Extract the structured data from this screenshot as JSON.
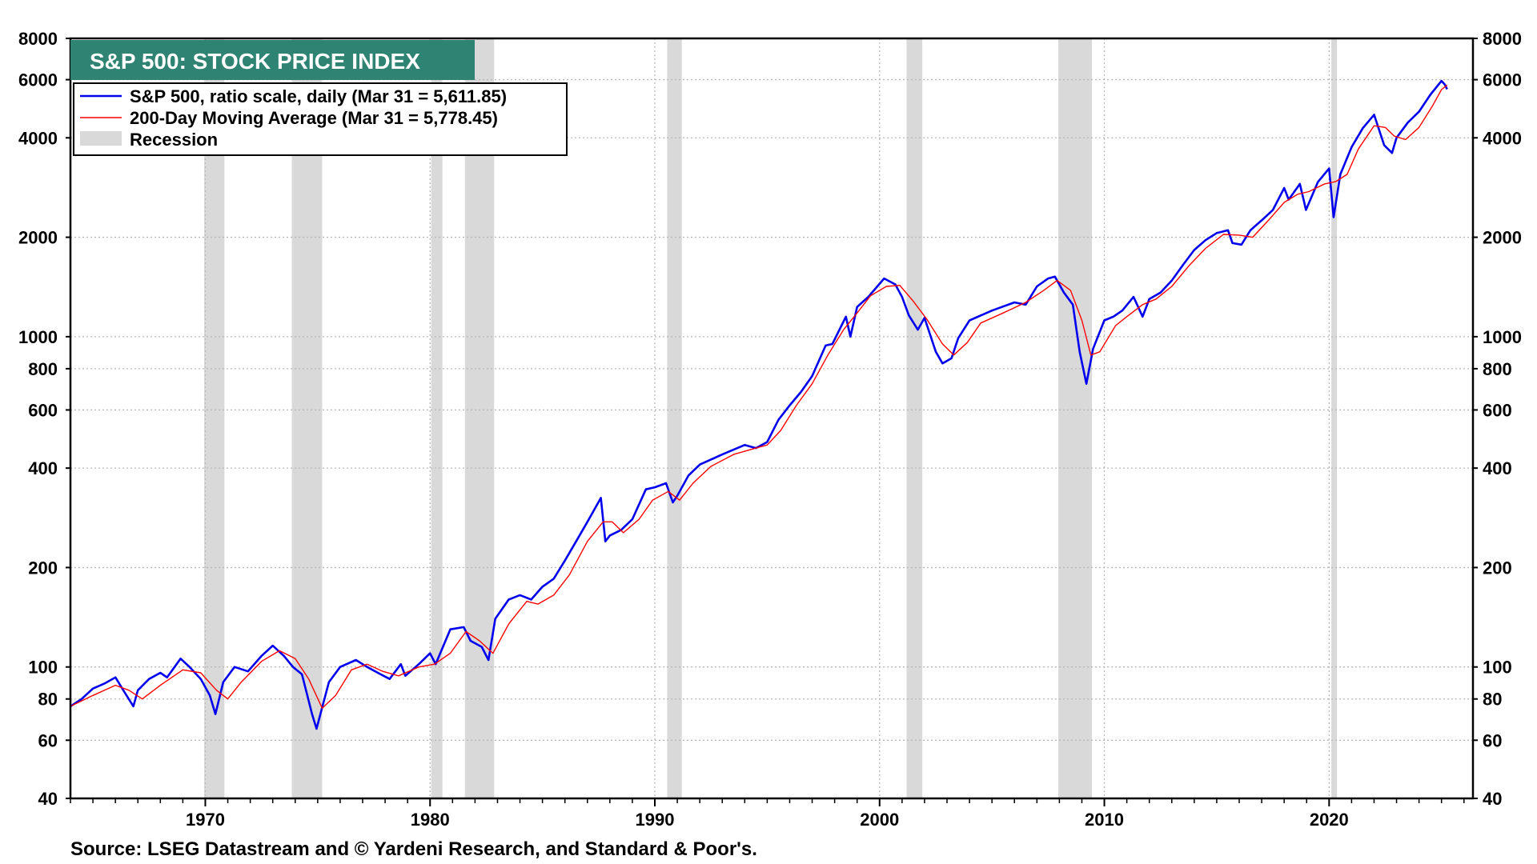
{
  "chart_data": {
    "type": "line",
    "title": "S&P 500: STOCK PRICE INDEX",
    "source": "Source: LSEG Datastream and © Yardeni Research, and Standard & Poor's.",
    "y_scale": "log",
    "ylim": [
      40,
      8000
    ],
    "xlim": [
      1964.0,
      2026.4
    ],
    "y_ticks": [
      {
        "value": 40,
        "label": "40"
      },
      {
        "value": 60,
        "label": "60"
      },
      {
        "value": 80,
        "label": "80"
      },
      {
        "value": 100,
        "label": "100"
      },
      {
        "value": 200,
        "label": "200"
      },
      {
        "value": 400,
        "label": "400"
      },
      {
        "value": 600,
        "label": "600"
      },
      {
        "value": 800,
        "label": "800"
      },
      {
        "value": 1000,
        "label": "1000"
      },
      {
        "value": 2000,
        "label": "2000"
      },
      {
        "value": 4000,
        "label": "4000"
      },
      {
        "value": 6000,
        "label": "6000"
      },
      {
        "value": 8000,
        "label": "8000"
      }
    ],
    "x_ticks": [
      {
        "value": 1970,
        "label": "1970"
      },
      {
        "value": 1980,
        "label": "1980"
      },
      {
        "value": 1990,
        "label": "1990"
      },
      {
        "value": 2000,
        "label": "2000"
      },
      {
        "value": 2010,
        "label": "2010"
      },
      {
        "value": 2020,
        "label": "2020"
      }
    ],
    "grid": true,
    "legend_position": "top-left",
    "legend": [
      {
        "label": "S&P 500, ratio scale, daily (Mar 31 = 5,611.85)",
        "color": "#0000ee",
        "kind": "line"
      },
      {
        "label": "200-Day Moving Average (Mar 31 = 5,778.45)",
        "color": "#ff0000",
        "kind": "line"
      },
      {
        "label": "Recession",
        "color": "#d9d9d9",
        "kind": "box"
      }
    ],
    "recessions": [
      [
        1969.95,
        1970.85
      ],
      [
        1973.85,
        1975.2
      ],
      [
        1980.05,
        1980.55
      ],
      [
        1981.55,
        1982.85
      ],
      [
        1990.55,
        1991.2
      ],
      [
        2001.2,
        2001.9
      ],
      [
        2007.95,
        2009.45
      ],
      [
        2020.1,
        2020.35
      ]
    ],
    "series": [
      {
        "name": "S&P 500, ratio scale, daily (Mar 31 = 5,611.85)",
        "color": "#0000ee",
        "x": [
          1964.0,
          1964.5,
          1965.0,
          1965.5,
          1966.0,
          1966.4,
          1966.8,
          1967.0,
          1967.5,
          1968.0,
          1968.3,
          1968.9,
          1969.3,
          1969.8,
          1970.2,
          1970.45,
          1970.8,
          1971.3,
          1971.9,
          1972.5,
          1973.0,
          1973.5,
          1973.9,
          1974.3,
          1974.75,
          1974.95,
          1975.5,
          1976.0,
          1976.7,
          1977.2,
          1977.8,
          1978.2,
          1978.7,
          1978.9,
          1979.5,
          1980.0,
          1980.25,
          1980.9,
          1981.5,
          1981.8,
          1982.3,
          1982.6,
          1982.9,
          1983.5,
          1984.0,
          1984.5,
          1985.0,
          1985.5,
          1986.0,
          1986.5,
          1987.0,
          1987.6,
          1987.8,
          1988.0,
          1988.5,
          1989.0,
          1989.6,
          1990.0,
          1990.5,
          1990.8,
          1991.0,
          1991.5,
          1992.0,
          1993.0,
          1994.0,
          1994.5,
          1995.0,
          1995.5,
          1996.0,
          1996.5,
          1997.0,
          1997.6,
          1997.9,
          1998.5,
          1998.7,
          1999.0,
          1999.5,
          2000.2,
          2000.7,
          2001.0,
          2001.3,
          2001.7,
          2002.0,
          2002.5,
          2002.8,
          2003.2,
          2003.5,
          2004.0,
          2005.0,
          2006.0,
          2006.5,
          2007.0,
          2007.5,
          2007.8,
          2008.2,
          2008.6,
          2008.9,
          2009.2,
          2009.5,
          2010.0,
          2010.4,
          2010.8,
          2011.3,
          2011.7,
          2012.0,
          2012.5,
          2013.0,
          2013.5,
          2014.0,
          2014.5,
          2015.0,
          2015.5,
          2015.7,
          2016.1,
          2016.5,
          2017.0,
          2017.5,
          2018.0,
          2018.2,
          2018.7,
          2018.97,
          2019.5,
          2020.0,
          2020.2,
          2020.5,
          2021.0,
          2021.5,
          2022.0,
          2022.45,
          2022.8,
          2023.0,
          2023.5,
          2024.0,
          2024.5,
          2025.0,
          2025.15,
          2025.25
        ],
        "values": [
          76,
          80,
          86,
          89,
          93,
          84,
          76,
          85,
          92,
          96,
          93,
          106,
          100,
          92,
          82,
          72,
          90,
          100,
          97,
          108,
          116,
          108,
          100,
          95,
          72,
          65,
          90,
          100,
          105,
          100,
          95,
          92,
          102,
          94,
          102,
          110,
          102,
          130,
          132,
          120,
          115,
          105,
          140,
          160,
          165,
          160,
          175,
          185,
          210,
          240,
          275,
          325,
          240,
          250,
          260,
          280,
          345,
          350,
          360,
          315,
          330,
          380,
          410,
          440,
          470,
          460,
          480,
          560,
          620,
          680,
          760,
          940,
          950,
          1150,
          1000,
          1230,
          1320,
          1500,
          1440,
          1320,
          1160,
          1050,
          1140,
          900,
          830,
          860,
          990,
          1120,
          1200,
          1270,
          1250,
          1420,
          1500,
          1520,
          1360,
          1250,
          900,
          720,
          920,
          1120,
          1150,
          1200,
          1320,
          1150,
          1300,
          1360,
          1480,
          1650,
          1830,
          1960,
          2060,
          2100,
          1920,
          1900,
          2100,
          2250,
          2420,
          2820,
          2600,
          2900,
          2420,
          2940,
          3230,
          2300,
          3100,
          3750,
          4280,
          4700,
          3800,
          3600,
          4000,
          4450,
          4800,
          5400,
          5950,
          5800,
          5612
        ]
      },
      {
        "name": "200-Day Moving Average (Mar 31 = 5,778.45)",
        "color": "#ff0000",
        "x": [
          1964.0,
          1965.0,
          1966.0,
          1966.6,
          1967.2,
          1968.0,
          1969.0,
          1969.8,
          1970.5,
          1971.0,
          1971.6,
          1972.5,
          1973.3,
          1974.0,
          1974.6,
          1975.2,
          1975.8,
          1976.5,
          1977.2,
          1977.9,
          1978.6,
          1979.5,
          1980.2,
          1980.9,
          1981.6,
          1982.2,
          1982.8,
          1983.5,
          1984.3,
          1984.8,
          1985.5,
          1986.2,
          1987.0,
          1987.7,
          1988.1,
          1988.6,
          1989.3,
          1989.9,
          1990.6,
          1991.1,
          1991.7,
          1992.5,
          1993.5,
          1994.5,
          1995.0,
          1995.6,
          1996.3,
          1997.0,
          1997.7,
          1998.4,
          1999.0,
          1999.6,
          2000.3,
          2000.9,
          2001.5,
          2002.1,
          2002.8,
          2003.3,
          2003.9,
          2004.5,
          2005.5,
          2006.5,
          2007.3,
          2007.9,
          2008.5,
          2009.0,
          2009.4,
          2009.8,
          2010.5,
          2011.0,
          2011.7,
          2012.3,
          2013.0,
          2013.8,
          2014.5,
          2015.3,
          2016.0,
          2016.6,
          2017.3,
          2018.0,
          2018.6,
          2019.1,
          2019.8,
          2020.3,
          2020.8,
          2021.3,
          2022.0,
          2022.5,
          2022.9,
          2023.4,
          2024.0,
          2024.6,
          2025.0,
          2025.25
        ],
        "values": [
          76,
          82,
          88,
          85,
          80,
          88,
          98,
          96,
          85,
          80,
          90,
          104,
          112,
          106,
          92,
          75,
          82,
          98,
          102,
          97,
          94,
          100,
          102,
          110,
          128,
          120,
          110,
          135,
          158,
          155,
          165,
          190,
          240,
          275,
          275,
          255,
          280,
          320,
          340,
          320,
          360,
          405,
          440,
          460,
          470,
          520,
          620,
          720,
          880,
          1050,
          1180,
          1330,
          1420,
          1430,
          1280,
          1130,
          950,
          880,
          960,
          1100,
          1180,
          1270,
          1380,
          1480,
          1380,
          1120,
          880,
          900,
          1080,
          1150,
          1250,
          1300,
          1420,
          1650,
          1850,
          2040,
          2030,
          2000,
          2250,
          2550,
          2700,
          2750,
          2900,
          2950,
          3100,
          3700,
          4350,
          4300,
          4050,
          3950,
          4300,
          5000,
          5600,
          5778
        ]
      }
    ]
  }
}
